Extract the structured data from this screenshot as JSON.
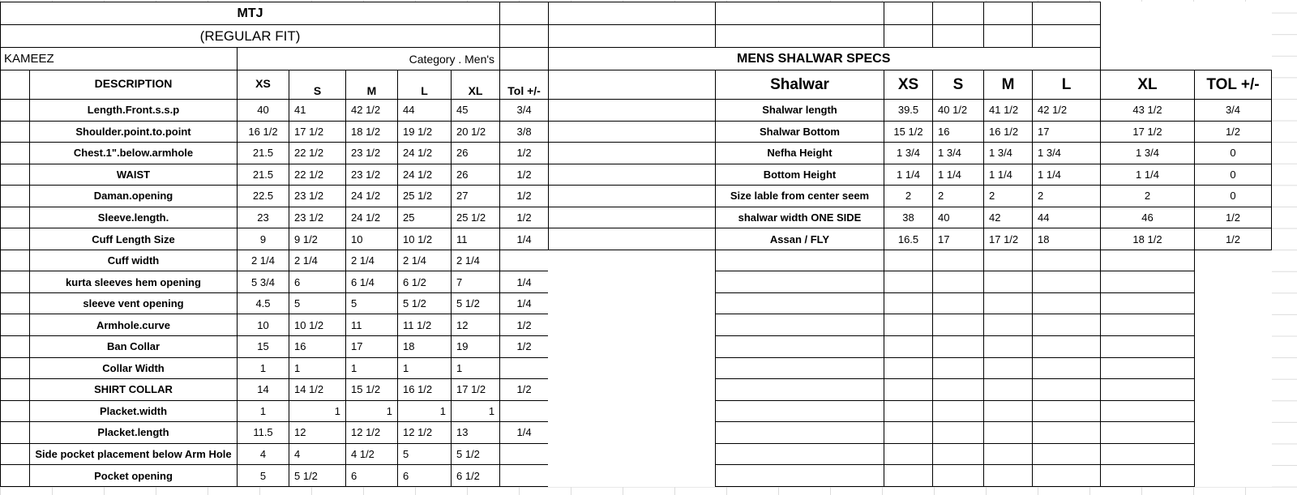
{
  "kameez": {
    "title": "MTJ",
    "subtitle": "(REGULAR FIT)",
    "section": "KAMEEZ",
    "category": "Category .  Men's",
    "headers": [
      "DESCRIPTION",
      "XS",
      "S",
      "M",
      "L",
      "XL",
      "Tol +/-"
    ],
    "rows": [
      {
        "desc": "Length.Front.s.s.p",
        "vals": [
          "40",
          "41",
          "42 1/2",
          "44",
          "45"
        ],
        "tol": "3/4"
      },
      {
        "desc": "Shoulder.point.to.point",
        "vals": [
          "16 1/2",
          "17 1/2",
          "18 1/2",
          "19 1/2",
          "20 1/2"
        ],
        "tol": "3/8"
      },
      {
        "desc": "Chest.1\".below.armhole",
        "vals": [
          "21.5",
          "22 1/2",
          "23 1/2",
          "24 1/2",
          "26"
        ],
        "tol": "1/2"
      },
      {
        "desc": "WAIST",
        "vals": [
          "21.5",
          "22 1/2",
          "23 1/2",
          "24 1/2",
          "26"
        ],
        "tol": "1/2"
      },
      {
        "desc": "Daman.opening",
        "vals": [
          "22.5",
          "23 1/2",
          "24 1/2",
          "25 1/2",
          "27"
        ],
        "tol": "1/2"
      },
      {
        "desc": "Sleeve.length.",
        "vals": [
          "23",
          "23 1/2",
          "24 1/2",
          "25",
          "25 1/2"
        ],
        "tol": "1/2"
      },
      {
        "desc": "Cuff Length Size",
        "vals": [
          "9",
          "9 1/2",
          "10",
          "10 1/2",
          "11"
        ],
        "tol": "1/4"
      },
      {
        "desc": "Cuff width",
        "vals": [
          "2 1/4",
          "2 1/4",
          "2 1/4",
          "2 1/4",
          "2 1/4"
        ],
        "tol": ""
      },
      {
        "desc": "kurta sleeves hem opening",
        "vals": [
          "5 3/4",
          "6",
          "6 1/4",
          "6 1/2",
          "7"
        ],
        "tol": "1/4"
      },
      {
        "desc": "sleeve vent opening",
        "vals": [
          "4.5",
          "5",
          "5",
          "5 1/2",
          "5 1/2"
        ],
        "tol": "1/4"
      },
      {
        "desc": "Armhole.curve",
        "vals": [
          "10",
          "10 1/2",
          "11",
          "11 1/2",
          "12"
        ],
        "tol": "1/2"
      },
      {
        "desc": "Ban Collar",
        "vals": [
          "15",
          "16",
          "17",
          "18",
          "19"
        ],
        "tol": "1/2"
      },
      {
        "desc": "Collar Width",
        "vals": [
          "1",
          "1",
          "1",
          "1",
          "1"
        ],
        "tol": ""
      },
      {
        "desc": "SHIRT COLLAR",
        "vals": [
          "14",
          "14 1/2",
          "15 1/2",
          "16 1/2",
          "17 1/2"
        ],
        "tol": "1/2"
      },
      {
        "desc": "Placket.width",
        "vals": [
          "1",
          1,
          1,
          1,
          1
        ],
        "tol": ""
      },
      {
        "desc": "Placket.length",
        "vals": [
          "11.5",
          "12",
          "12 1/2",
          "12 1/2",
          "13"
        ],
        "tol": "1/4"
      },
      {
        "desc": "Side pocket placement below Arm Hole",
        "vals": [
          "4",
          "4",
          "4 1/2",
          "5",
          "5 1/2"
        ],
        "tol": ""
      },
      {
        "desc": "Pocket opening",
        "vals": [
          "5",
          "5 1/2",
          "6",
          "6",
          "6 1/2"
        ],
        "tol": ""
      }
    ]
  },
  "shalwar": {
    "title": "MENS SHALWAR SPECS",
    "headers": [
      "Shalwar",
      "XS",
      "S",
      "M",
      "L",
      "XL",
      "TOL +/-"
    ],
    "rows": [
      {
        "desc": "Shalwar length",
        "vals": [
          "39.5",
          "40 1/2",
          "41 1/2",
          "42 1/2",
          "43 1/2"
        ],
        "tol": "3/4"
      },
      {
        "desc": "Shalwar Bottom",
        "vals": [
          "15 1/2",
          "16",
          "16 1/2",
          "17",
          "17 1/2"
        ],
        "tol": "1/2"
      },
      {
        "desc": "Nefha Height",
        "vals": [
          "1 3/4",
          "1 3/4",
          "1 3/4",
          "1 3/4",
          "1 3/4"
        ],
        "tol": "0"
      },
      {
        "desc": "Bottom Height",
        "vals": [
          "1 1/4",
          "1 1/4",
          "1 1/4",
          "1 1/4",
          "1 1/4"
        ],
        "tol": "0"
      },
      {
        "desc": "Size lable from center seem",
        "vals": [
          "2",
          "2",
          "2",
          "2",
          "2"
        ],
        "tol": "0"
      },
      {
        "desc": "shalwar width ONE SIDE",
        "vals": [
          "38",
          "40",
          "42",
          "44",
          "46"
        ],
        "tol": "1/2"
      },
      {
        "desc": "Assan / FLY",
        "vals": [
          "16.5",
          "17",
          "17 1/2",
          "18",
          "18 1/2"
        ],
        "tol": "1/2"
      }
    ]
  }
}
